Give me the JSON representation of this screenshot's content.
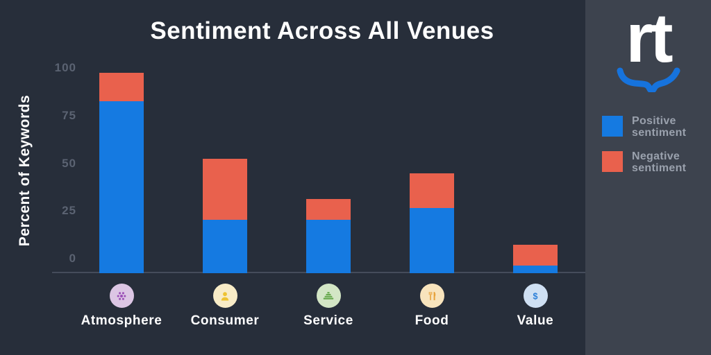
{
  "page": {
    "background": "#272e3a",
    "panel_background": "#3d434e"
  },
  "brand": {
    "logo_text": "rt",
    "swoosh_color": "#1673dd"
  },
  "chart_data": {
    "type": "bar",
    "stacked": true,
    "title": "Sentiment Across All Venues",
    "ylabel": "Percent of Keywords",
    "xlabel": "",
    "categories": [
      "Atmosphere",
      "Consumer",
      "Service",
      "Food",
      "Value"
    ],
    "series": [
      {
        "name": "Positive sentiment",
        "color": "#157ae1",
        "values": [
          90,
          28,
          28,
          34,
          4
        ]
      },
      {
        "name": "Negative sentiment",
        "color": "#e9614d",
        "values": [
          15,
          32,
          11,
          18,
          11
        ]
      }
    ],
    "yticks": [
      0,
      25,
      50,
      75,
      100
    ],
    "ylim": [
      0,
      110
    ],
    "grid": false,
    "legend_position": "right panel",
    "axis_color": "#454c5b",
    "tick_text_color": "#5b6372"
  },
  "category_icons": [
    {
      "icon": "disco-ball-icon",
      "bg": "#dcc6e4",
      "fg": "#9b50b7"
    },
    {
      "icon": "person-icon",
      "bg": "#f8ecc7",
      "fg": "#eec331"
    },
    {
      "icon": "pyramid-icon",
      "bg": "#d3e6c5",
      "fg": "#67a94d"
    },
    {
      "icon": "utensils-icon",
      "bg": "#f8e4bd",
      "fg": "#e7a23b"
    },
    {
      "icon": "dollar-icon",
      "bg": "#cfe0f3",
      "fg": "#2b7fd9"
    }
  ]
}
